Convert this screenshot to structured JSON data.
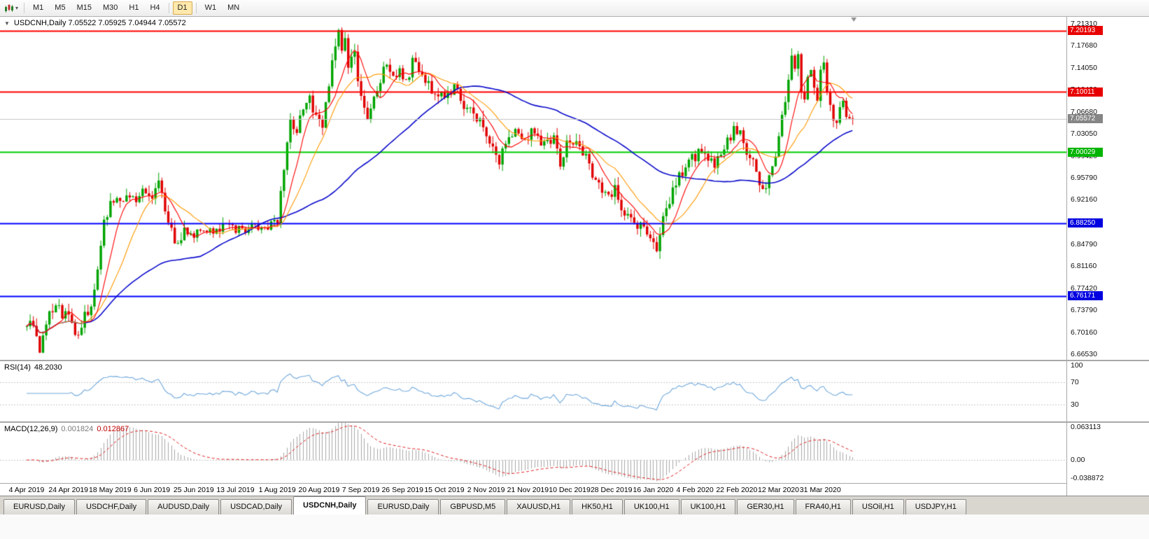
{
  "toolbar": {
    "timeframes": [
      {
        "label": "M1",
        "active": false
      },
      {
        "label": "M5",
        "active": false
      },
      {
        "label": "M15",
        "active": false
      },
      {
        "label": "M30",
        "active": false
      },
      {
        "label": "H1",
        "active": false
      },
      {
        "label": "H4",
        "active": false
      },
      {
        "label": "D1",
        "active": true
      },
      {
        "label": "W1",
        "active": false
      },
      {
        "label": "MN",
        "active": false
      }
    ]
  },
  "chart": {
    "title": "USDCNH,Daily 7.05522 7.05925 7.04944 7.05572"
  },
  "rsi_panel": {
    "label": "RSI(14)",
    "value": "48.2030",
    "levels": [
      {
        "text": "100",
        "value": 100
      },
      {
        "text": "70",
        "value": 70
      },
      {
        "text": "30",
        "value": 30
      }
    ]
  },
  "macd_panel": {
    "label": "MACD(12,26,9)",
    "value_main": "0.001824",
    "value_signal": "0.012867",
    "levels": [
      {
        "text": "0.063113",
        "value": 0.063113
      },
      {
        "text": "0.00",
        "value": 0
      },
      {
        "text": "-0.038872",
        "value": -0.038872
      }
    ]
  },
  "tabs": [
    {
      "label": "EURUSD,Daily",
      "active": false
    },
    {
      "label": "USDCHF,Daily",
      "active": false
    },
    {
      "label": "AUDUSD,Daily",
      "active": false
    },
    {
      "label": "USDCAD,Daily",
      "active": false
    },
    {
      "label": "USDCNH,Daily",
      "active": true
    },
    {
      "label": "EURUSD,Daily",
      "active": false
    },
    {
      "label": "GBPUSD,M5",
      "active": false
    },
    {
      "label": "XAUUSD,H1",
      "active": false
    },
    {
      "label": "HK50,H1",
      "active": false
    },
    {
      "label": "UK100,H1",
      "active": false
    },
    {
      "label": "UK100,H1",
      "active": false
    },
    {
      "label": "GER30,H1",
      "active": false
    },
    {
      "label": "FRA40,H1",
      "active": false
    },
    {
      "label": "USOil,H1",
      "active": false
    },
    {
      "label": "USDJPY,H1",
      "active": false
    }
  ],
  "chart_data": {
    "type": "candlestick",
    "symbol": "USDCNH",
    "timeframe": "Daily",
    "ohlc_current": {
      "open": 7.05522,
      "high": 7.05925,
      "low": 7.04944,
      "close": 7.05572
    },
    "y_axis": {
      "top_price": 7.2131,
      "bottom_price": 6.6653,
      "ticks": [
        "7.21310",
        "7.17680",
        "7.14050",
        "7.10420",
        "7.06680",
        "7.03050",
        "6.99420",
        "6.95790",
        "6.92160",
        "6.88530",
        "6.84790",
        "6.81160",
        "6.77420",
        "6.73790",
        "6.70160",
        "6.66530"
      ]
    },
    "x_axis": {
      "ticks": [
        "4 Apr 2019",
        "24 Apr 2019",
        "18 May 2019",
        "6 Jun 2019",
        "25 Jun 2019",
        "13 Jul 2019",
        "1 Aug 2019",
        "20 Aug 2019",
        "7 Sep 2019",
        "26 Sep 2019",
        "15 Oct 2019",
        "2 Nov 2019",
        "21 Nov 2019",
        "10 Dec 2019",
        "28 Dec 2019",
        "16 Jan 2020",
        "4 Feb 2020",
        "22 Feb 2020",
        "12 Mar 2020",
        "31 Mar 2020"
      ],
      "candles_per_tick": 13
    },
    "horizontal_lines": [
      {
        "price": 7.20193,
        "color": "#ff0000",
        "badge": "7.20193",
        "badge_bg": "#e80000"
      },
      {
        "price": 7.10011,
        "color": "#ff0000",
        "badge": "7.10011",
        "badge_bg": "#e80000"
      },
      {
        "price": 7.00029,
        "color": "#00cc00",
        "badge": "7.00029",
        "badge_bg": "#00b400"
      },
      {
        "price": 6.8825,
        "color": "#0000ff",
        "badge": "6.88250",
        "badge_bg": "#0000e0"
      },
      {
        "price": 6.76171,
        "color": "#0000ff",
        "badge": "6.76171",
        "badge_bg": "#0000e0"
      }
    ],
    "current_price": {
      "price": 7.05572,
      "badge": "7.05572",
      "badge_bg": "#858585",
      "line_color": "#c4c4c4"
    },
    "candles": {
      "count": 258,
      "up_color": "#00a400",
      "down_color": "#e00000"
    },
    "price_anchors": [
      [
        0,
        6.72
      ],
      [
        1,
        6.73
      ],
      [
        2,
        6.712
      ],
      [
        3,
        6.69
      ],
      [
        4,
        6.678
      ],
      [
        5,
        6.7
      ],
      [
        6,
        6.716
      ],
      [
        7,
        6.728
      ],
      [
        8,
        6.74
      ],
      [
        9,
        6.748
      ],
      [
        10,
        6.738
      ],
      [
        11,
        6.728
      ],
      [
        12,
        6.74
      ],
      [
        13,
        6.73
      ],
      [
        14,
        6.718
      ],
      [
        15,
        6.705
      ],
      [
        16,
        6.695
      ],
      [
        17,
        6.71
      ],
      [
        18,
        6.726
      ],
      [
        19,
        6.74
      ],
      [
        20,
        6.752
      ],
      [
        21,
        6.77
      ],
      [
        22,
        6.81
      ],
      [
        23,
        6.85
      ],
      [
        24,
        6.882
      ],
      [
        25,
        6.902
      ],
      [
        26,
        6.916
      ],
      [
        28,
        6.926
      ],
      [
        30,
        6.918
      ],
      [
        33,
        6.93
      ],
      [
        35,
        6.924
      ],
      [
        37,
        6.936
      ],
      [
        39,
        6.928
      ],
      [
        41,
        6.946
      ],
      [
        43,
        6.9
      ],
      [
        45,
        6.868
      ],
      [
        47,
        6.848
      ],
      [
        49,
        6.872
      ],
      [
        51,
        6.862
      ],
      [
        53,
        6.875
      ],
      [
        55,
        6.868
      ],
      [
        57,
        6.878
      ],
      [
        59,
        6.872
      ],
      [
        62,
        6.881
      ],
      [
        65,
        6.874
      ],
      [
        68,
        6.868
      ],
      [
        71,
        6.877
      ],
      [
        74,
        6.872
      ],
      [
        76,
        6.879
      ],
      [
        78,
        6.886
      ],
      [
        79,
        6.93
      ],
      [
        80,
        6.98
      ],
      [
        81,
        7.02
      ],
      [
        82,
        7.056
      ],
      [
        84,
        7.038
      ],
      [
        86,
        7.066
      ],
      [
        88,
        7.092
      ],
      [
        90,
        7.056
      ],
      [
        92,
        7.044
      ],
      [
        93,
        7.08
      ],
      [
        94,
        7.12
      ],
      [
        95,
        7.156
      ],
      [
        96,
        7.176
      ],
      [
        97,
        7.192
      ],
      [
        98,
        7.164
      ],
      [
        99,
        7.186
      ],
      [
        100,
        7.148
      ],
      [
        102,
        7.162
      ],
      [
        103,
        7.11
      ],
      [
        105,
        7.068
      ],
      [
        106,
        7.054
      ],
      [
        108,
        7.092
      ],
      [
        110,
        7.122
      ],
      [
        112,
        7.142
      ],
      [
        114,
        7.126
      ],
      [
        116,
        7.142
      ],
      [
        118,
        7.12
      ],
      [
        120,
        7.146
      ],
      [
        122,
        7.132
      ],
      [
        124,
        7.12
      ],
      [
        127,
        7.102
      ],
      [
        130,
        7.092
      ],
      [
        133,
        7.112
      ],
      [
        136,
        7.082
      ],
      [
        139,
        7.064
      ],
      [
        142,
        7.05
      ],
      [
        145,
        7.002
      ],
      [
        147,
        6.986
      ],
      [
        149,
        7.018
      ],
      [
        152,
        7.036
      ],
      [
        155,
        7.022
      ],
      [
        158,
        7.036
      ],
      [
        161,
        7.012
      ],
      [
        164,
        7.026
      ],
      [
        166,
        6.974
      ],
      [
        168,
        7.03
      ],
      [
        171,
        7.012
      ],
      [
        174,
        6.99
      ],
      [
        177,
        6.956
      ],
      [
        180,
        6.93
      ],
      [
        183,
        6.94
      ],
      [
        186,
        6.902
      ],
      [
        189,
        6.88
      ],
      [
        192,
        6.87
      ],
      [
        194,
        6.856
      ],
      [
        196,
        6.84
      ],
      [
        198,
        6.886
      ],
      [
        200,
        6.92
      ],
      [
        202,
        6.946
      ],
      [
        204,
        6.966
      ],
      [
        206,
        6.98
      ],
      [
        208,
        6.996
      ],
      [
        210,
        7.006
      ],
      [
        212,
        6.986
      ],
      [
        214,
        6.972
      ],
      [
        216,
        6.996
      ],
      [
        218,
        7.016
      ],
      [
        220,
        7.036
      ],
      [
        222,
        7.026
      ],
      [
        224,
        7.0
      ],
      [
        226,
        6.98
      ],
      [
        228,
        6.95
      ],
      [
        230,
        6.932
      ],
      [
        232,
        6.97
      ],
      [
        234,
        7.022
      ],
      [
        236,
        7.09
      ],
      [
        237,
        7.13
      ],
      [
        238,
        7.162
      ],
      [
        239,
        7.138
      ],
      [
        240,
        7.166
      ],
      [
        241,
        7.1
      ],
      [
        242,
        7.082
      ],
      [
        243,
        7.12
      ],
      [
        244,
        7.146
      ],
      [
        245,
        7.112
      ],
      [
        246,
        7.09
      ],
      [
        247,
        7.13
      ],
      [
        248,
        7.146
      ],
      [
        249,
        7.1
      ],
      [
        250,
        7.082
      ],
      [
        251,
        7.062
      ],
      [
        252,
        7.048
      ],
      [
        253,
        7.07
      ],
      [
        254,
        7.082
      ],
      [
        255,
        7.06
      ],
      [
        256,
        7.05
      ],
      [
        257,
        7.0557
      ]
    ],
    "moving_averages": [
      {
        "period": 8,
        "color": "#ff0000"
      },
      {
        "period": 16,
        "color": "#ff9900"
      },
      {
        "period": 55,
        "color": "#0a0acc"
      }
    ],
    "rsi": {
      "period": 14,
      "current": 48.203,
      "color": "#6fa8dc",
      "level_lines": [
        70,
        30
      ]
    },
    "macd": {
      "fast": 12,
      "slow": 26,
      "signal_period": 9,
      "macd_value": 0.001824,
      "signal_value": 0.012867,
      "hist_color": "#a8a8a8",
      "signal_color": "#e02020",
      "axis_max": 0.063113,
      "axis_min": -0.038872
    }
  }
}
